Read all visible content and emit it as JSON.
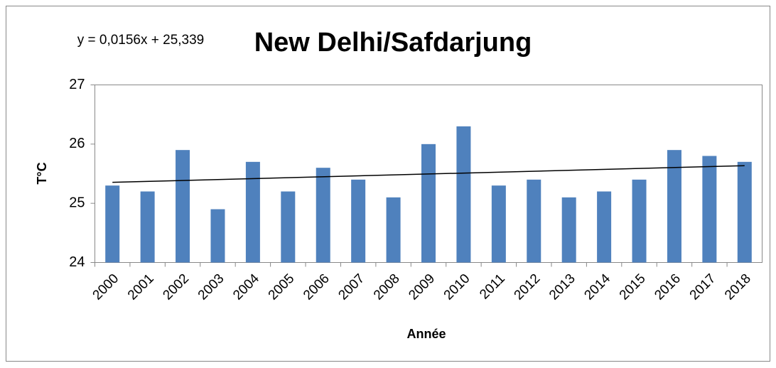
{
  "chart_data": {
    "type": "bar",
    "title": "New Delhi/Safdarjung",
    "annotation": "y = 0,0156x + 25,339",
    "trendline": {
      "slope": 0.0156,
      "intercept": 25.339
    },
    "x_label": "Année",
    "y_label": "T°C",
    "categories": [
      "2000",
      "2001",
      "2002",
      "2003",
      "2004",
      "2005",
      "2006",
      "2007",
      "2008",
      "2009",
      "2010",
      "2011",
      "2012",
      "2013",
      "2014",
      "2015",
      "2016",
      "2017",
      "2018"
    ],
    "values": [
      25.3,
      25.2,
      25.9,
      24.9,
      25.7,
      25.2,
      25.6,
      25.4,
      25.1,
      26.0,
      26.3,
      25.3,
      25.4,
      25.1,
      25.2,
      25.4,
      25.9,
      25.8,
      25.7
    ],
    "color": "#4f81bd",
    "ylim": [
      24,
      27
    ],
    "yticks": [
      24,
      25,
      26,
      27
    ],
    "grid": false
  }
}
